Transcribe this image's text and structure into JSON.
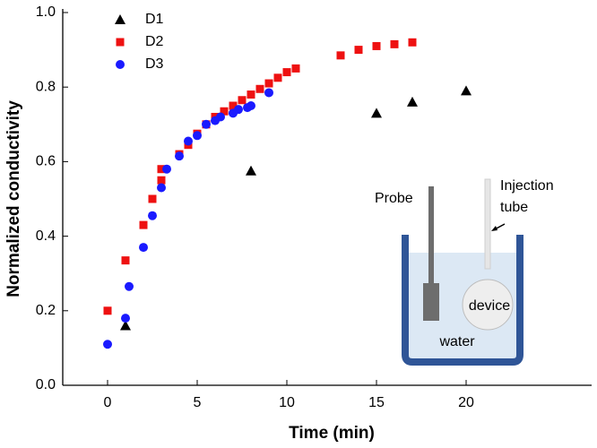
{
  "chart_data": {
    "type": "scatter",
    "xlabel": "Time (min)",
    "ylabel": "Normalized conductivity",
    "xlim": [
      -2.5,
      27
    ],
    "xticks": [
      0,
      5,
      10,
      15,
      20
    ],
    "ylim": [
      0,
      1
    ],
    "yticks": [
      {
        "value": 0,
        "label": "0.0"
      },
      {
        "value": 0.2,
        "label": "0.2"
      },
      {
        "value": 0.4,
        "label": "0.4"
      },
      {
        "value": 0.6,
        "label": "0.6"
      },
      {
        "value": 0.8,
        "label": "0.8"
      },
      {
        "value": 1,
        "label": "1.0"
      }
    ],
    "legend": "upper-left",
    "series": [
      {
        "name": "D1",
        "color": "#000000",
        "marker": "triangle",
        "x": [
          1,
          8,
          15,
          17,
          20
        ],
        "values": [
          0.16,
          0.575,
          0.73,
          0.76,
          0.79
        ]
      },
      {
        "name": "D2",
        "color": "#ee1111",
        "marker": "square",
        "x": [
          0,
          1,
          2,
          2.5,
          3,
          3,
          4,
          4.5,
          5,
          5.5,
          6,
          6.5,
          7,
          7.5,
          8,
          8.5,
          9,
          9.5,
          10,
          10.5,
          13,
          14,
          15,
          16,
          17
        ],
        "values": [
          0.2,
          0.335,
          0.43,
          0.5,
          0.58,
          0.55,
          0.62,
          0.645,
          0.675,
          0.7,
          0.72,
          0.735,
          0.75,
          0.765,
          0.78,
          0.795,
          0.81,
          0.825,
          0.84,
          0.85,
          0.885,
          0.9,
          0.91,
          0.915,
          0.92
        ]
      },
      {
        "name": "D3",
        "color": "#1a1aff",
        "marker": "circle",
        "x": [
          0,
          1,
          1.2,
          2,
          2.5,
          3,
          3.3,
          4,
          4.5,
          5,
          5.5,
          6,
          6.3,
          7,
          7.3,
          7.8,
          8,
          9
        ],
        "values": [
          0.11,
          0.18,
          0.265,
          0.37,
          0.455,
          0.53,
          0.58,
          0.615,
          0.655,
          0.67,
          0.7,
          0.71,
          0.72,
          0.73,
          0.74,
          0.745,
          0.75,
          0.785
        ]
      }
    ],
    "inset": {
      "probe": "Probe",
      "tube": [
        "Injection",
        "tube"
      ],
      "device": "device",
      "water": "water"
    }
  }
}
